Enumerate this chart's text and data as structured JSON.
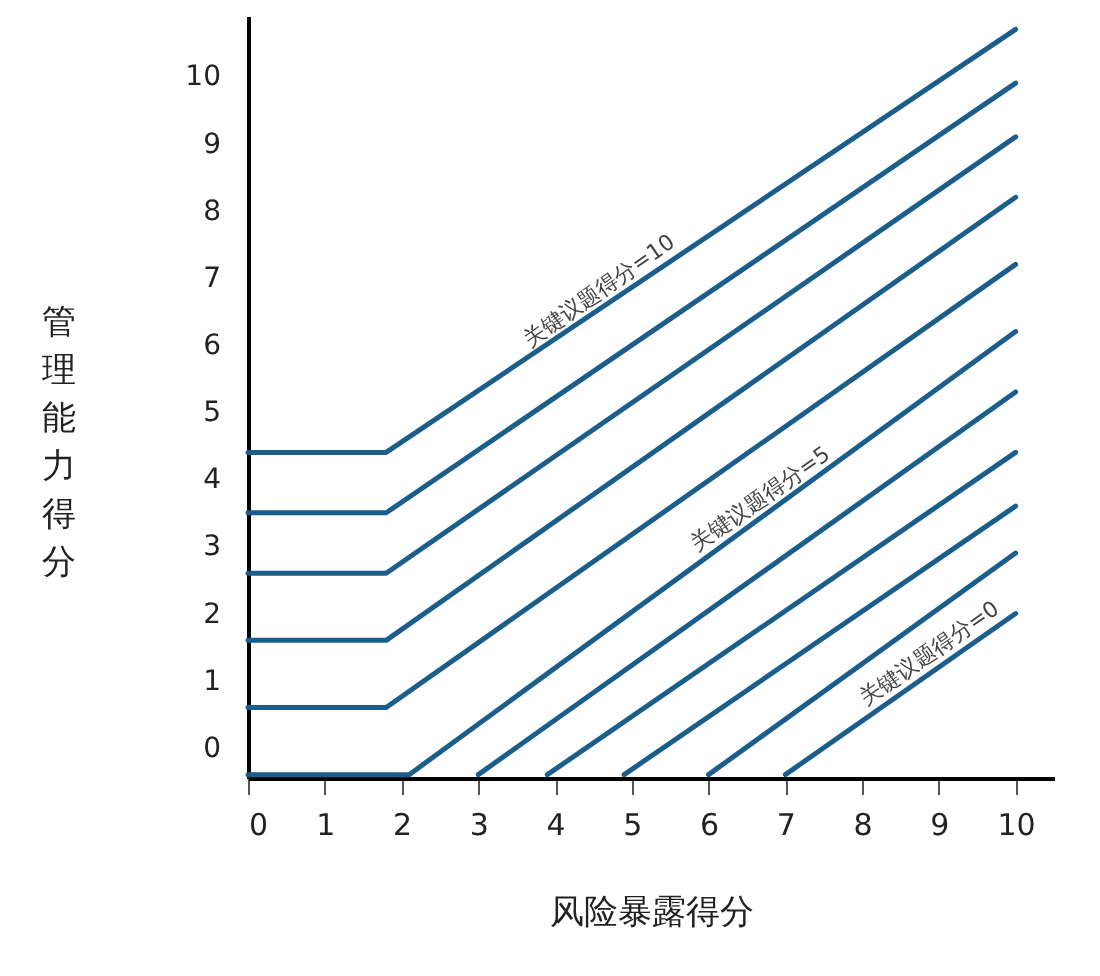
{
  "chart_data": {
    "type": "line",
    "xlabel": "风险暴露得分",
    "ylabel": "管理能力得分",
    "xlim": [
      0,
      10.5
    ],
    "ylim": [
      -0.45,
      10.9
    ],
    "xticks": [
      0,
      1,
      2,
      3,
      4,
      5,
      6,
      7,
      8,
      9,
      10
    ],
    "yticks": [
      0,
      1,
      2,
      3,
      4,
      5,
      6,
      7,
      8,
      9,
      10
    ],
    "grid": false,
    "marker": "none",
    "line_style": "solid",
    "series": [
      {
        "color": "#1b5e8c",
        "x": [
          0,
          1.8,
          10
        ],
        "values": [
          4.4,
          4.4,
          10.7
        ]
      },
      {
        "color": "#1b5e8c",
        "x": [
          0,
          1.8,
          10
        ],
        "values": [
          3.5,
          3.5,
          9.9
        ]
      },
      {
        "color": "#1b5e8c",
        "x": [
          0,
          1.8,
          10
        ],
        "values": [
          2.6,
          2.6,
          9.1
        ]
      },
      {
        "color": "#1b5e8c",
        "x": [
          0,
          1.8,
          10
        ],
        "values": [
          1.6,
          1.6,
          8.2
        ]
      },
      {
        "color": "#1b5e8c",
        "x": [
          0,
          1.8,
          10
        ],
        "values": [
          0.6,
          0.6,
          7.2
        ]
      },
      {
        "color": "#1b5e8c",
        "x": [
          0,
          2.1,
          10
        ],
        "values": [
          -0.4,
          -0.4,
          6.2
        ]
      },
      {
        "color": "#1b5e8c",
        "x": [
          3.0,
          10
        ],
        "values": [
          -0.4,
          5.3
        ]
      },
      {
        "color": "#1b5e8c",
        "x": [
          3.9,
          10
        ],
        "values": [
          -0.4,
          4.4
        ]
      },
      {
        "color": "#1b5e8c",
        "x": [
          4.9,
          10
        ],
        "values": [
          -0.4,
          3.6
        ]
      },
      {
        "color": "#1b5e8c",
        "x": [
          6.0,
          10
        ],
        "values": [
          -0.4,
          2.9
        ]
      },
      {
        "color": "#1b5e8c",
        "x": [
          7.0,
          10
        ],
        "values": [
          -0.4,
          2.0
        ]
      }
    ],
    "annotations": [
      {
        "text": "关键议题得分=10",
        "x": 4.7,
        "y": 6.6
      },
      {
        "text": "关键议题得分=5",
        "x": 6.8,
        "y": 3.5
      },
      {
        "text": "关键议题得分=0",
        "x": 9.0,
        "y": 1.2
      }
    ]
  }
}
